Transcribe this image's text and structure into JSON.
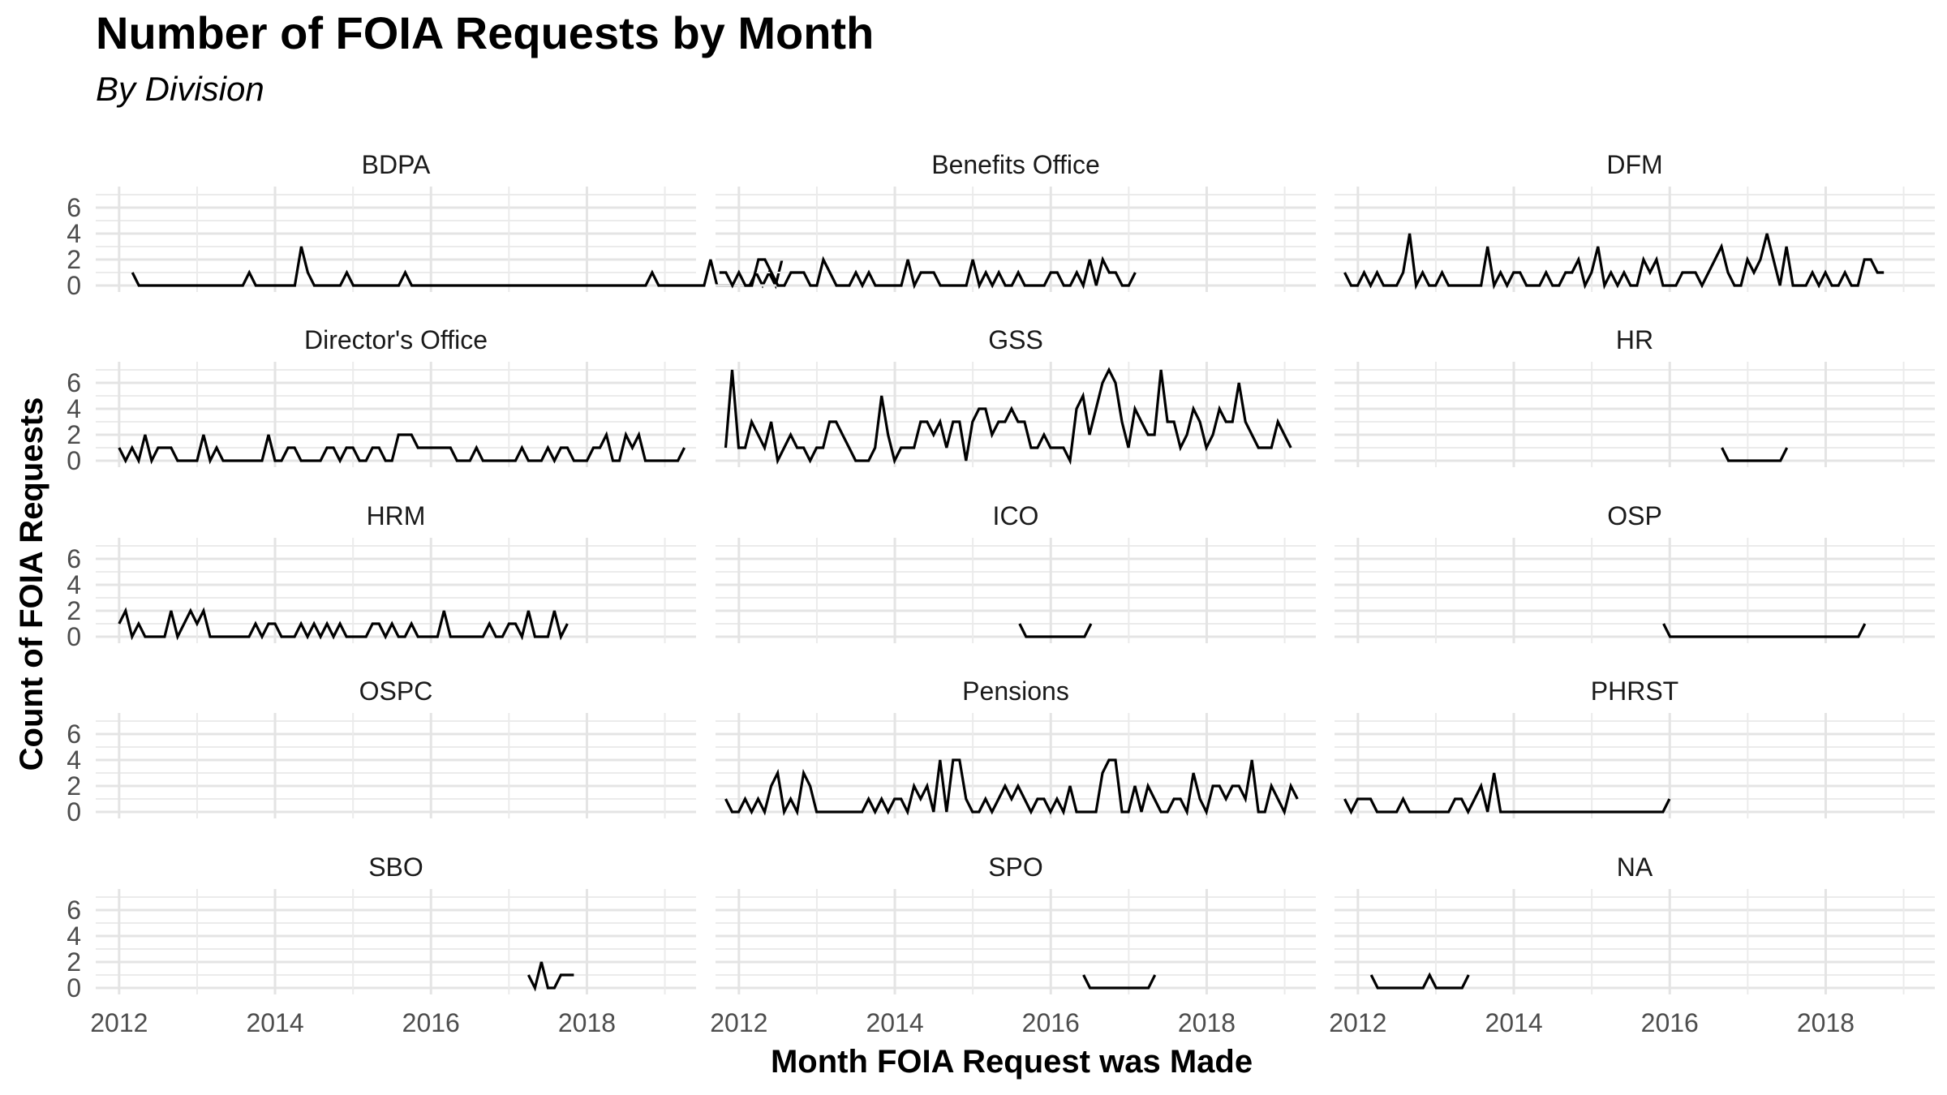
{
  "chart_data": {
    "type": "line",
    "title": "Number of FOIA Requests by Month",
    "subtitle": "By Division",
    "xlabel": "Month FOIA Request was Made",
    "ylabel": "Count of FOIA Requests",
    "xlim": [
      2011.7,
      2019.4
    ],
    "ylim": [
      0,
      7
    ],
    "xticks": [
      2012,
      2014,
      2016,
      2018
    ],
    "yticks": [
      0,
      2,
      4,
      6
    ],
    "grid": true,
    "series": [
      {
        "name": "BDPA",
        "x0": 2012.17,
        "values": [
          1,
          0,
          0,
          0,
          0,
          0,
          0,
          0,
          0,
          0,
          0,
          0,
          0,
          0,
          0,
          0,
          0,
          0,
          1,
          0,
          0,
          0,
          0,
          0,
          0,
          0,
          3,
          1,
          0,
          0,
          0,
          0,
          0,
          1,
          0,
          0,
          0,
          0,
          0,
          0,
          0,
          0,
          1,
          0,
          0,
          0,
          0,
          0,
          0,
          0,
          0,
          0,
          0,
          0,
          0,
          0,
          0,
          0,
          0,
          0,
          0,
          0,
          0,
          0,
          0,
          0,
          0,
          0,
          0,
          0,
          0,
          0,
          0,
          0,
          0,
          0,
          0,
          0,
          0,
          0,
          1,
          0,
          0,
          0,
          0,
          0,
          0,
          0,
          0,
          2,
          0,
          0,
          0,
          0,
          0,
          0,
          1,
          0,
          1,
          0,
          2
        ]
      },
      {
        "name": "Benefits Office",
        "x0": 2011.75,
        "values": [
          1,
          1,
          0,
          1,
          0,
          0,
          2,
          2,
          1,
          0,
          0,
          1,
          1,
          1,
          0,
          0,
          2,
          1,
          0,
          0,
          0,
          1,
          0,
          1,
          0,
          0,
          0,
          0,
          0,
          2,
          0,
          1,
          1,
          1,
          0,
          0,
          0,
          0,
          0,
          2,
          0,
          1,
          0,
          1,
          0,
          0,
          1,
          0,
          0,
          0,
          0,
          1,
          1,
          0,
          0,
          1,
          0,
          2,
          0,
          2,
          1,
          1,
          0,
          0,
          1
        ]
      },
      {
        "name": "DFM",
        "x0": 2011.83,
        "values": [
          1,
          0,
          0,
          1,
          0,
          1,
          0,
          0,
          0,
          1,
          4,
          0,
          1,
          0,
          0,
          1,
          0,
          0,
          0,
          0,
          0,
          0,
          3,
          0,
          1,
          0,
          1,
          1,
          0,
          0,
          0,
          1,
          0,
          0,
          1,
          1,
          2,
          0,
          1,
          3,
          0,
          1,
          0,
          1,
          0,
          0,
          2,
          1,
          2,
          0,
          0,
          0,
          1,
          1,
          1,
          0,
          1,
          2,
          3,
          1,
          0,
          0,
          2,
          1,
          2,
          4,
          2,
          0,
          3,
          0,
          0,
          0,
          1,
          0,
          1,
          0,
          0,
          1,
          0,
          0,
          2,
          2,
          1,
          1
        ]
      },
      {
        "name": "Director's Office",
        "x0": 2012.0,
        "values": [
          1,
          0,
          1,
          0,
          2,
          0,
          1,
          1,
          1,
          0,
          0,
          0,
          0,
          2,
          0,
          1,
          0,
          0,
          0,
          0,
          0,
          0,
          0,
          2,
          0,
          0,
          1,
          1,
          0,
          0,
          0,
          0,
          1,
          1,
          0,
          1,
          1,
          0,
          0,
          1,
          1,
          0,
          0,
          2,
          2,
          2,
          1,
          1,
          1,
          1,
          1,
          1,
          0,
          0,
          0,
          1,
          0,
          0,
          0,
          0,
          0,
          0,
          1,
          0,
          0,
          0,
          1,
          0,
          1,
          1,
          0,
          0,
          0,
          1,
          1,
          2,
          0,
          0,
          2,
          1,
          2,
          0,
          0,
          0,
          0,
          0,
          0,
          1
        ]
      },
      {
        "name": "GSS",
        "x0": 2011.83,
        "values": [
          1,
          7,
          1,
          1,
          3,
          2,
          1,
          3,
          0,
          1,
          2,
          1,
          1,
          0,
          1,
          1,
          3,
          3,
          2,
          1,
          0,
          0,
          0,
          1,
          5,
          2,
          0,
          1,
          1,
          1,
          3,
          3,
          2,
          3,
          1,
          3,
          3,
          0,
          3,
          4,
          4,
          2,
          3,
          3,
          4,
          3,
          3,
          1,
          1,
          2,
          1,
          1,
          1,
          0,
          4,
          5,
          2,
          4,
          6,
          7,
          6,
          3,
          1,
          4,
          3,
          2,
          2,
          7,
          3,
          3,
          1,
          2,
          4,
          3,
          1,
          2,
          4,
          3,
          3,
          6,
          3,
          2,
          1,
          1,
          1,
          3,
          2,
          1
        ]
      },
      {
        "name": "HR",
        "x0": 2016.67,
        "values": [
          1,
          0,
          0,
          0,
          0,
          0,
          0,
          0,
          0,
          0,
          1
        ]
      },
      {
        "name": "HRM",
        "x0": 2012.0,
        "values": [
          1,
          2,
          0,
          1,
          0,
          0,
          0,
          0,
          2,
          0,
          1,
          2,
          1,
          2,
          0,
          0,
          0,
          0,
          0,
          0,
          0,
          1,
          0,
          1,
          1,
          0,
          0,
          0,
          1,
          0,
          1,
          0,
          1,
          0,
          1,
          0,
          0,
          0,
          0,
          1,
          1,
          0,
          1,
          0,
          0,
          1,
          0,
          0,
          0,
          0,
          2,
          0,
          0,
          0,
          0,
          0,
          0,
          1,
          0,
          0,
          1,
          1,
          0,
          2,
          0,
          0,
          0,
          2,
          0,
          1
        ]
      },
      {
        "name": "ICO",
        "x0": 2015.6,
        "values": [
          1,
          0,
          0,
          0,
          0,
          0,
          0,
          0,
          0,
          0,
          0,
          1
        ]
      },
      {
        "name": "OSP",
        "x0": 2015.92,
        "values": [
          1,
          0,
          0,
          0,
          0,
          0,
          0,
          0,
          0,
          0,
          0,
          0,
          0,
          0,
          0,
          0,
          0,
          0,
          0,
          0,
          0,
          0,
          0,
          0,
          0,
          0,
          0,
          0,
          0,
          0,
          0,
          1
        ]
      },
      {
        "name": "OSPC",
        "x0": 2012.0,
        "values": []
      },
      {
        "name": "Pensions",
        "x0": 2011.83,
        "values": [
          1,
          0,
          0,
          1,
          0,
          1,
          0,
          2,
          3,
          0,
          1,
          0,
          3,
          2,
          0,
          0,
          0,
          0,
          0,
          0,
          0,
          0,
          1,
          0,
          1,
          0,
          1,
          1,
          0,
          2,
          1,
          2,
          0,
          4,
          0,
          4,
          4,
          1,
          0,
          0,
          1,
          0,
          1,
          2,
          1,
          2,
          1,
          0,
          1,
          1,
          0,
          1,
          0,
          2,
          0,
          0,
          0,
          0,
          3,
          4,
          4,
          0,
          0,
          2,
          0,
          2,
          1,
          0,
          0,
          1,
          1,
          0,
          3,
          1,
          0,
          2,
          2,
          1,
          2,
          2,
          1,
          4,
          0,
          0,
          2,
          1,
          0,
          2,
          1
        ]
      },
      {
        "name": "PHRST",
        "x0": 2011.83,
        "values": [
          1,
          0,
          1,
          1,
          1,
          0,
          0,
          0,
          0,
          1,
          0,
          0,
          0,
          0,
          0,
          0,
          0,
          1,
          1,
          0,
          1,
          2,
          0,
          3,
          0,
          0,
          0,
          0,
          0,
          0,
          0,
          0,
          0,
          0,
          0,
          0,
          0,
          0,
          0,
          0,
          0,
          0,
          0,
          0,
          0,
          0,
          0,
          0,
          0,
          0,
          1
        ]
      },
      {
        "name": "SBO",
        "x0": 2017.25,
        "values": [
          1,
          0,
          2,
          0,
          0,
          1,
          1,
          1
        ]
      },
      {
        "name": "SPO",
        "x0": 2016.42,
        "values": [
          1,
          0,
          0,
          0,
          0,
          0,
          0,
          0,
          0,
          0,
          0,
          1
        ]
      },
      {
        "name": "NA",
        "x0": 2012.17,
        "values": [
          1,
          0,
          0,
          0,
          0,
          0,
          0,
          0,
          0,
          1,
          0,
          0,
          0,
          0,
          0,
          1
        ]
      }
    ]
  }
}
